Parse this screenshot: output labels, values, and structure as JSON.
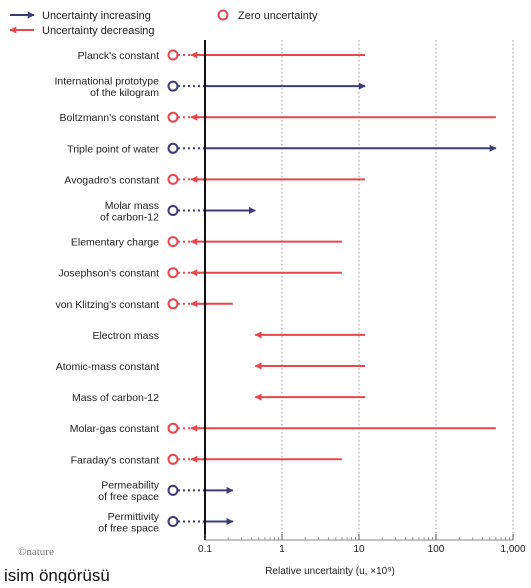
{
  "colors": {
    "decreasing": "#e8474c",
    "increasing": "#3c3c78",
    "grid": "#9a9a9a",
    "axis": "#111111",
    "text": "#222222"
  },
  "legend": {
    "increasing_label": "Uncertainty increasing",
    "decreasing_label": "Uncertainty decreasing",
    "zero_label": "Zero uncertainty"
  },
  "footer": {
    "logo": "©nature",
    "bottom_text": "isim öngörüsü"
  },
  "chart_data": {
    "type": "arrow-range",
    "xlabel": "Relative uncertainty (u, ×10⁹)",
    "xscale": "log",
    "xlim": [
      0.1,
      1000
    ],
    "xticks": [
      {
        "value": 0.1,
        "label": "0.1"
      },
      {
        "value": 1,
        "label": "1"
      },
      {
        "value": 10,
        "label": "10"
      },
      {
        "value": 100,
        "label": "100"
      },
      {
        "value": 1000,
        "label": "1,000"
      }
    ],
    "grid": "dotted vertical at decades",
    "legend_position": "top-left",
    "rows": [
      {
        "label": [
          "Planck's constant"
        ],
        "direction": "decreasing",
        "zero_circle": true,
        "from": 12,
        "to": 0.1
      },
      {
        "label": [
          "International prototype",
          "of the kilogram"
        ],
        "direction": "increasing",
        "zero_circle": true,
        "from": 0.1,
        "to": 12
      },
      {
        "label": [
          "Boltzmann's constant"
        ],
        "direction": "decreasing",
        "zero_circle": true,
        "from": 600,
        "to": 0.1
      },
      {
        "label": [
          "Triple point of water"
        ],
        "direction": "increasing",
        "zero_circle": true,
        "from": 0.1,
        "to": 600
      },
      {
        "label": [
          "Avogadro's constant"
        ],
        "direction": "decreasing",
        "zero_circle": true,
        "from": 12,
        "to": 0.1
      },
      {
        "label": [
          "Molar mass",
          "of carbon-12"
        ],
        "direction": "increasing",
        "zero_circle": true,
        "from": 0.1,
        "to": 0.45
      },
      {
        "label": [
          "Elementary charge"
        ],
        "direction": "decreasing",
        "zero_circle": true,
        "from": 6,
        "to": 0.1
      },
      {
        "label": [
          "Josephson's constant"
        ],
        "direction": "decreasing",
        "zero_circle": true,
        "from": 6,
        "to": 0.1
      },
      {
        "label": [
          "von Klitzing's constant"
        ],
        "direction": "decreasing",
        "zero_circle": true,
        "from": 0.23,
        "to": 0.1
      },
      {
        "label": [
          "Electron mass"
        ],
        "direction": "decreasing",
        "zero_circle": false,
        "from": 12,
        "to": 0.45
      },
      {
        "label": [
          "Atomic-mass constant"
        ],
        "direction": "decreasing",
        "zero_circle": false,
        "from": 12,
        "to": 0.45
      },
      {
        "label": [
          "Mass of carbon-12"
        ],
        "direction": "decreasing",
        "zero_circle": false,
        "from": 12,
        "to": 0.45
      },
      {
        "label": [
          "Molar-gas constant"
        ],
        "direction": "decreasing",
        "zero_circle": true,
        "from": 600,
        "to": 0.1
      },
      {
        "label": [
          "Faraday's constant"
        ],
        "direction": "decreasing",
        "zero_circle": true,
        "from": 6,
        "to": 0.1
      },
      {
        "label": [
          "Permeability",
          "of free space"
        ],
        "direction": "increasing",
        "zero_circle": true,
        "from": 0.1,
        "to": 0.23
      },
      {
        "label": [
          "Permittivity",
          "of free space"
        ],
        "direction": "increasing",
        "zero_circle": true,
        "from": 0.1,
        "to": 0.23
      }
    ]
  }
}
